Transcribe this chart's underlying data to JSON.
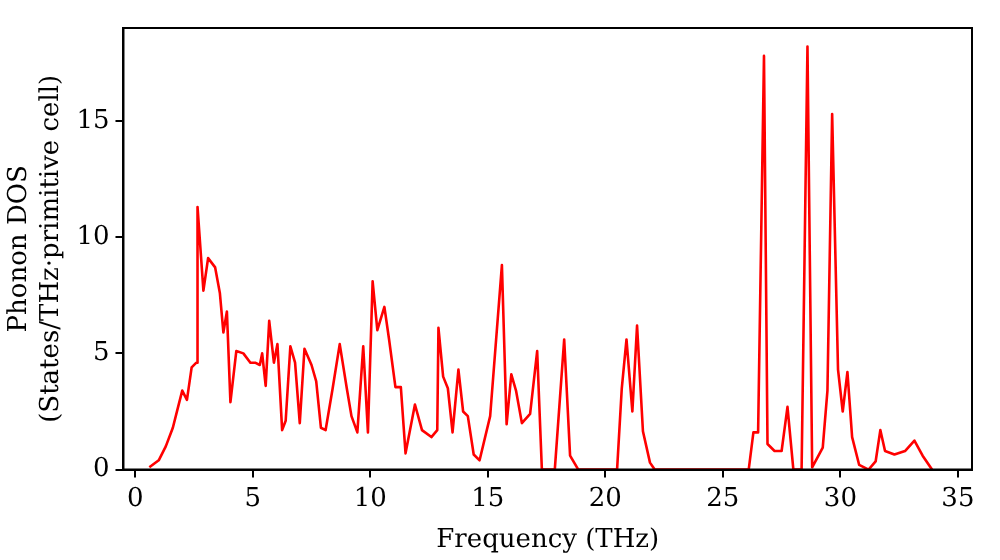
{
  "chart_data": {
    "type": "line",
    "xlabel": "Frequency (THz)",
    "ylabel": "Phonon DOS\n(States/THz·primitive cell)",
    "xlim": [
      -0.5,
      35.6
    ],
    "ylim": [
      0,
      19
    ],
    "xticks": [
      0,
      5,
      10,
      15,
      20,
      25,
      30,
      35
    ],
    "yticks": [
      0,
      5,
      10,
      15
    ],
    "grid": false,
    "legend": false,
    "marker": "none",
    "line_style": "solid",
    "series": [
      {
        "color": "#ff0000",
        "x": [
          0.6,
          1,
          1.3,
          1.6,
          1.8,
          2,
          2.2,
          2.4,
          2.6,
          2.65,
          2.9,
          3.1,
          3.4,
          3.6,
          3.75,
          3.9,
          4.05,
          4.3,
          4.6,
          4.9,
          5.1,
          5.3,
          5.4,
          5.55,
          5.7,
          5.9,
          6.05,
          6.25,
          6.4,
          6.6,
          6.8,
          7,
          7.2,
          7.5,
          7.7,
          7.9,
          8.1,
          8.4,
          8.7,
          9,
          9.2,
          9.45,
          9.7,
          9.9,
          10.1,
          10.3,
          10.6,
          10.8,
          11.07,
          11.3,
          11.5,
          11.9,
          12.2,
          12.6,
          12.85,
          12.9,
          13.1,
          13.3,
          13.5,
          13.75,
          13.95,
          14.15,
          14.4,
          14.65,
          15.1,
          15.6,
          15.8,
          16,
          16.2,
          16.45,
          16.8,
          17.1,
          17.3,
          17.85,
          18.25,
          18.5,
          18.85,
          20.5,
          20.7,
          20.9,
          21.15,
          21.35,
          21.6,
          21.9,
          22.1,
          26.1,
          26.3,
          26.5,
          26.75,
          26.9,
          27.2,
          27.5,
          27.75,
          28,
          28.35,
          28.6,
          28.8,
          29.25,
          29.45,
          29.65,
          29.9,
          30.1,
          30.3,
          30.5,
          30.8,
          31.2,
          31.5,
          31.7,
          31.9,
          32.3,
          32.75,
          33.15,
          33.5,
          33.9
        ],
        "values": [
          0.1,
          0.4,
          1,
          1.8,
          2.6,
          3.4,
          3,
          4.4,
          4.6,
          11.3,
          7.7,
          9.1,
          8.7,
          7.6,
          5.9,
          6.8,
          2.9,
          5.1,
          5,
          4.6,
          4.6,
          4.5,
          5,
          3.6,
          6.4,
          4.6,
          5.4,
          1.7,
          2.1,
          5.3,
          4.6,
          2,
          5.2,
          4.5,
          3.8,
          1.8,
          1.7,
          3.5,
          5.4,
          3.5,
          2.3,
          1.6,
          5.3,
          1.6,
          8.1,
          6,
          7,
          5.6,
          3.55,
          3.55,
          0.7,
          2.8,
          1.7,
          1.4,
          1.7,
          6.1,
          4,
          3.5,
          1.6,
          4.3,
          2.5,
          2.3,
          0.65,
          0.4,
          2.3,
          8.8,
          1.95,
          4.1,
          3.4,
          2,
          2.4,
          5.1,
          0,
          0,
          5.6,
          0.6,
          0,
          0,
          3.5,
          5.6,
          2.5,
          6.2,
          1.65,
          0.3,
          0,
          0,
          1.6,
          1.6,
          17.8,
          1.1,
          0.8,
          0.8,
          2.7,
          0,
          0,
          18.2,
          0.1,
          0.95,
          3.4,
          15.3,
          4.3,
          2.5,
          4.2,
          1.4,
          0.2,
          0,
          0.35,
          1.7,
          0.8,
          0.65,
          0.8,
          1.25,
          0.6,
          0
        ]
      }
    ]
  }
}
